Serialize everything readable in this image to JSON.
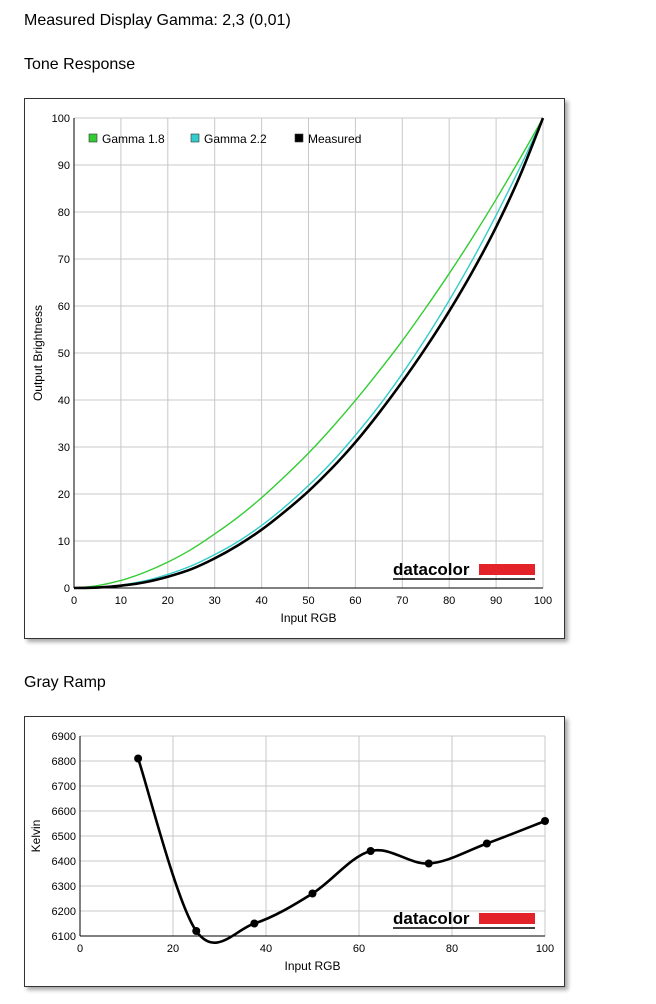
{
  "header": {
    "gamma_readout": "Measured Display Gamma: 2,3 (0,01)",
    "tone_section_title": "Tone Response",
    "gray_section_title": "Gray Ramp"
  },
  "brand": {
    "text": "datacolor",
    "accent_color": "#e3222a"
  },
  "chart_data": [
    {
      "type": "line",
      "title": "Tone Response",
      "xlabel": "Input RGB",
      "ylabel": "Output Brightness",
      "xlim": [
        0,
        100
      ],
      "ylim": [
        0,
        100
      ],
      "xticks": [
        0,
        10,
        20,
        30,
        40,
        50,
        60,
        70,
        80,
        90,
        100
      ],
      "yticks": [
        0,
        10,
        20,
        30,
        40,
        50,
        60,
        70,
        80,
        90,
        100
      ],
      "grid": true,
      "legend_position": "top-left",
      "series": [
        {
          "name": "Gamma 1.8",
          "color": "#33cc33",
          "x": [
            0,
            5,
            10,
            15,
            20,
            25,
            30,
            35,
            40,
            45,
            50,
            55,
            60,
            65,
            70,
            75,
            80,
            85,
            90,
            95,
            100
          ],
          "y": [
            0,
            0.5,
            1.6,
            3.3,
            5.5,
            8.2,
            11.5,
            15.1,
            19.2,
            23.8,
            28.7,
            34.1,
            39.9,
            46.1,
            52.6,
            59.6,
            66.9,
            74.6,
            82.7,
            91.2,
            100
          ]
        },
        {
          "name": "Gamma 2.2",
          "color": "#33cccc",
          "x": [
            0,
            5,
            10,
            15,
            20,
            25,
            30,
            35,
            40,
            45,
            50,
            55,
            60,
            65,
            70,
            75,
            80,
            85,
            90,
            95,
            100
          ],
          "y": [
            0,
            0.1,
            0.6,
            1.5,
            2.9,
            4.7,
            7.1,
            9.9,
            13.3,
            17.3,
            21.8,
            26.8,
            32.5,
            38.7,
            45.6,
            53.1,
            61.2,
            69.9,
            79.3,
            89.3,
            100
          ]
        },
        {
          "name": "Measured",
          "color": "#000000",
          "x": [
            0,
            5,
            10,
            15,
            20,
            25,
            30,
            35,
            40,
            45,
            50,
            55,
            60,
            65,
            70,
            75,
            80,
            85,
            90,
            95,
            100
          ],
          "y": [
            0,
            0.1,
            0.5,
            1.2,
            2.4,
            4.0,
            6.3,
            9.1,
            12.4,
            16.3,
            20.6,
            25.5,
            31.0,
            37.2,
            43.9,
            51.1,
            58.9,
            67.4,
            76.8,
            87.5,
            100
          ]
        }
      ]
    },
    {
      "type": "line",
      "title": "Gray Ramp",
      "xlabel": "Input RGB",
      "ylabel": "Kelvin",
      "xlim": [
        0,
        100
      ],
      "ylim": [
        6100,
        6900
      ],
      "xticks": [
        0,
        20,
        40,
        60,
        80,
        100
      ],
      "yticks": [
        6100,
        6200,
        6300,
        6400,
        6500,
        6600,
        6700,
        6800,
        6900
      ],
      "grid": true,
      "series": [
        {
          "name": "",
          "color": "#000000",
          "x": [
            12.5,
            25,
            37.5,
            50,
            62.5,
            75,
            87.5,
            100
          ],
          "y": [
            6810,
            6120,
            6150,
            6270,
            6440,
            6390,
            6470,
            6560
          ]
        }
      ]
    }
  ]
}
